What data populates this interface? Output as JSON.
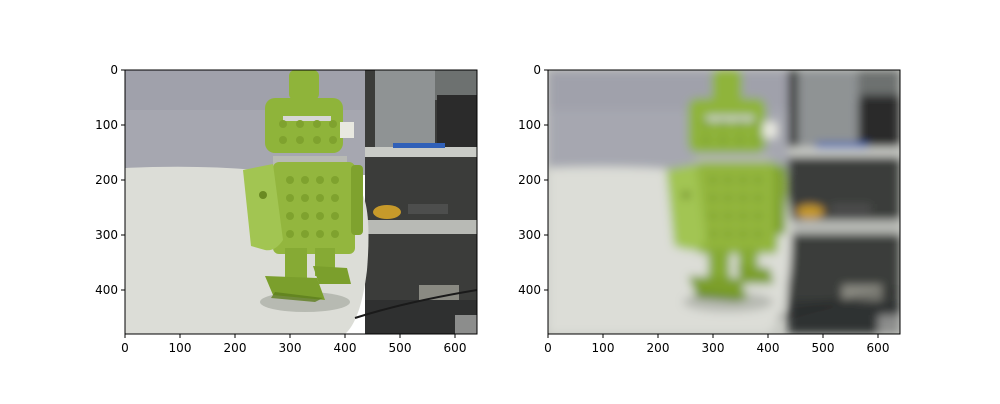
{
  "figure": {
    "panels": [
      {
        "id": "left",
        "title": "",
        "x_ticks": [
          "0",
          "100",
          "200",
          "300",
          "400",
          "500",
          "600"
        ],
        "y_ticks": [
          "0",
          "100",
          "200",
          "300",
          "400"
        ],
        "x_range": [
          0,
          640
        ],
        "y_range": [
          480,
          0
        ],
        "image_description": "sharp photo: green LEGO Android robot on white round table, shelves with tools behind"
      },
      {
        "id": "right",
        "title": "",
        "x_ticks": [
          "0",
          "100",
          "200",
          "300",
          "400",
          "500",
          "600"
        ],
        "y_ticks": [
          "0",
          "100",
          "200",
          "300",
          "400"
        ],
        "x_range": [
          0,
          640
        ],
        "y_range": [
          480,
          0
        ],
        "image_description": "blurred version of the same photo"
      }
    ],
    "colors": {
      "robot_green": "#8fb43a",
      "robot_dark": "#6d8e26",
      "table": "#d9dcd3",
      "wall": "#a9aab3",
      "shelf_bg": "#3a3b3a"
    }
  }
}
